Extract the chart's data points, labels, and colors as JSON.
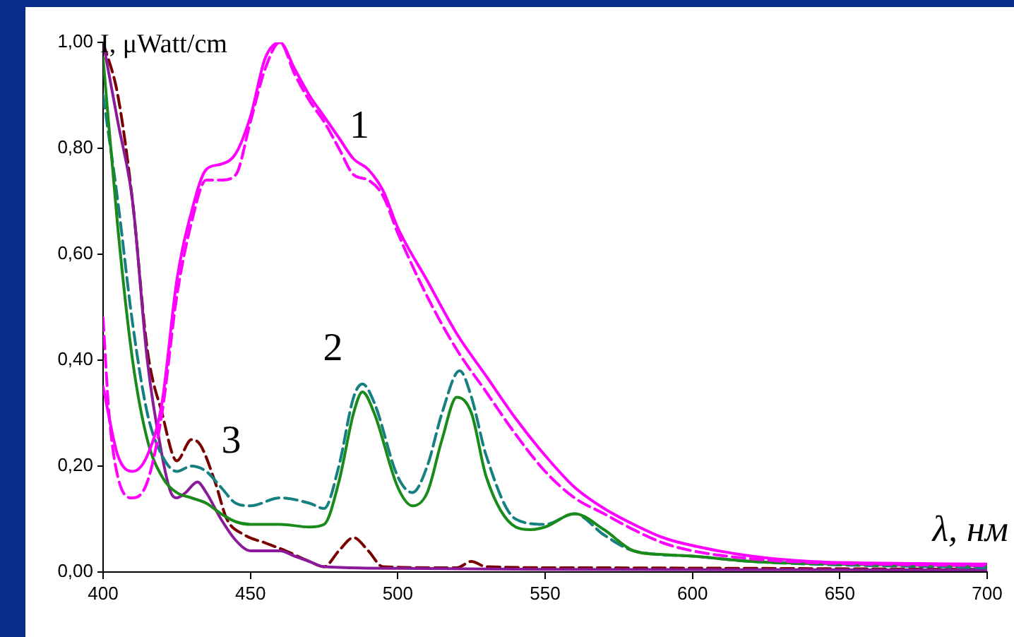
{
  "chart_data": {
    "type": "line",
    "xlabel": "λ, нм",
    "ylabel": "I, μWatt/cm",
    "xlim": [
      400,
      700
    ],
    "xticks": [
      400,
      450,
      500,
      550,
      600,
      650,
      700
    ],
    "ylim": [
      0,
      1
    ],
    "yticks": [
      {
        "value": 0,
        "label": "0,00"
      },
      {
        "value": 0.2,
        "label": "0,20"
      },
      {
        "value": 0.4,
        "label": "0,40"
      },
      {
        "value": 0.6,
        "label": "0,60"
      },
      {
        "value": 0.8,
        "label": "0,80"
      },
      {
        "value": 1,
        "label": "1,00"
      }
    ],
    "grid": false,
    "legend": false,
    "marker": "none",
    "annotations": [
      "1",
      "2",
      "3"
    ],
    "series": [
      {
        "color": "#ff00ff",
        "line_style": "solid",
        "x": [
          400,
          405,
          410,
          415,
          420,
          425,
          430,
          435,
          440,
          445,
          450,
          455,
          460,
          465,
          470,
          475,
          480,
          485,
          490,
          495,
          500,
          510,
          520,
          530,
          540,
          550,
          560,
          570,
          580,
          590,
          600,
          620,
          640,
          660,
          700
        ],
        "values": [
          0.35,
          0.22,
          0.19,
          0.22,
          0.32,
          0.55,
          0.68,
          0.76,
          0.77,
          0.79,
          0.86,
          0.97,
          1.0,
          0.95,
          0.9,
          0.86,
          0.82,
          0.78,
          0.76,
          0.72,
          0.65,
          0.55,
          0.45,
          0.37,
          0.29,
          0.22,
          0.16,
          0.12,
          0.09,
          0.065,
          0.05,
          0.03,
          0.02,
          0.017,
          0.015
        ]
      },
      {
        "color": "#ff00ff",
        "line_style": "dashed",
        "x": [
          400,
          402,
          405,
          410,
          415,
          420,
          425,
          430,
          435,
          440,
          445,
          450,
          455,
          460,
          465,
          470,
          475,
          480,
          485,
          490,
          495,
          500,
          510,
          520,
          530,
          540,
          550,
          560,
          570,
          580,
          590,
          600,
          620,
          640,
          700
        ],
        "values": [
          0.48,
          0.3,
          0.18,
          0.14,
          0.17,
          0.3,
          0.52,
          0.66,
          0.74,
          0.74,
          0.75,
          0.85,
          0.95,
          1.0,
          0.94,
          0.89,
          0.85,
          0.8,
          0.75,
          0.74,
          0.71,
          0.64,
          0.52,
          0.42,
          0.34,
          0.26,
          0.19,
          0.14,
          0.11,
          0.08,
          0.055,
          0.04,
          0.025,
          0.018,
          0.012
        ]
      },
      {
        "color": "#1a8a1a",
        "line_style": "solid",
        "x": [
          400,
          405,
          410,
          415,
          420,
          425,
          430,
          435,
          440,
          445,
          450,
          460,
          470,
          475,
          480,
          485,
          488,
          492,
          500,
          505,
          510,
          515,
          520,
          525,
          530,
          540,
          545,
          550,
          560,
          570,
          580,
          590,
          600,
          620,
          650,
          700
        ],
        "values": [
          0.97,
          0.65,
          0.4,
          0.25,
          0.18,
          0.15,
          0.14,
          0.13,
          0.11,
          0.095,
          0.09,
          0.09,
          0.085,
          0.09,
          0.17,
          0.3,
          0.34,
          0.3,
          0.16,
          0.125,
          0.15,
          0.25,
          0.33,
          0.3,
          0.18,
          0.085,
          0.08,
          0.085,
          0.11,
          0.08,
          0.04,
          0.033,
          0.03,
          0.02,
          0.015,
          0.012
        ]
      },
      {
        "color": "#168080",
        "line_style": "dashed",
        "x": [
          400,
          405,
          410,
          415,
          420,
          425,
          430,
          435,
          440,
          445,
          450,
          460,
          470,
          475,
          480,
          485,
          488,
          492,
          500,
          505,
          510,
          515,
          521,
          525,
          530,
          540,
          550,
          560,
          570,
          580,
          600,
          620,
          700
        ],
        "values": [
          0.9,
          0.7,
          0.47,
          0.3,
          0.22,
          0.19,
          0.2,
          0.19,
          0.16,
          0.13,
          0.125,
          0.14,
          0.13,
          0.12,
          0.2,
          0.33,
          0.355,
          0.32,
          0.18,
          0.15,
          0.2,
          0.3,
          0.38,
          0.33,
          0.22,
          0.1,
          0.09,
          0.11,
          0.07,
          0.04,
          0.03,
          0.02,
          0.008
        ]
      },
      {
        "color": "#8b1a9a",
        "line_style": "solid",
        "x": [
          400,
          405,
          410,
          415,
          420,
          423,
          425,
          428,
          432,
          435,
          440,
          445,
          450,
          460,
          465,
          470,
          475,
          500,
          550,
          700
        ],
        "values": [
          1.0,
          0.85,
          0.7,
          0.4,
          0.22,
          0.15,
          0.14,
          0.15,
          0.17,
          0.15,
          0.1,
          0.06,
          0.04,
          0.04,
          0.03,
          0.02,
          0.01,
          0.007,
          0.005,
          0.004
        ]
      },
      {
        "color": "#7a0000",
        "line_style": "dashed",
        "x": [
          400,
          405,
          410,
          415,
          420,
          425,
          430,
          433,
          438,
          442,
          448,
          455,
          462,
          470,
          475,
          480,
          485,
          490,
          495,
          520,
          525,
          530,
          560,
          700
        ],
        "values": [
          1.0,
          0.9,
          0.7,
          0.42,
          0.3,
          0.21,
          0.25,
          0.24,
          0.17,
          0.1,
          0.07,
          0.055,
          0.04,
          0.02,
          0.01,
          0.04,
          0.065,
          0.04,
          0.01,
          0.008,
          0.02,
          0.01,
          0.008,
          0.005
        ]
      }
    ]
  }
}
